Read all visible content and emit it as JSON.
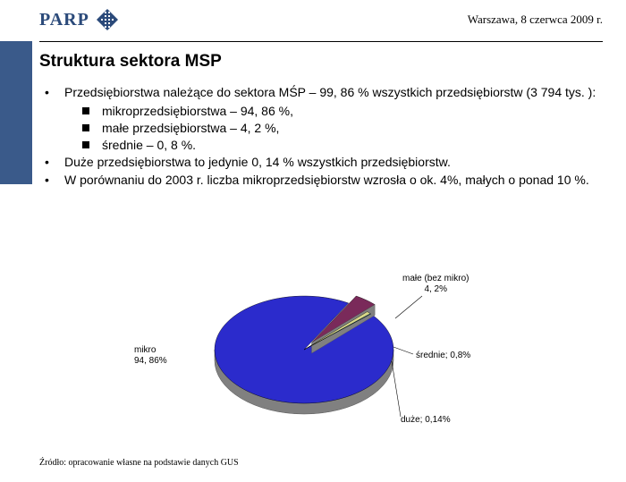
{
  "header": {
    "logo_text": "PARP",
    "date": "Warszawa, 8 czerwca 2009 r."
  },
  "title": "Struktura sektora MSP",
  "bullets": [
    {
      "text": "Przedsiębiorstwa należące do sektora MŚP – 99, 86 % wszystkich przedsiębiorstw (3 794 tys. ):",
      "subs": [
        "mikroprzedsiębiorstwa – 94, 86 %,",
        "małe przedsiębiorstwa – 4, 2 %,",
        "średnie – 0, 8 %."
      ]
    },
    {
      "text": "Duże przedsiębiorstwa to jedynie 0, 14 % wszystkich przedsiębiorstw.",
      "subs": []
    },
    {
      "text": "W porównaniu do 2003 r. liczba mikroprzedsiębiorstw wzrosła o ok. 4%, małych o ponad 10 %.",
      "subs": []
    }
  ],
  "chart": {
    "type": "pie",
    "background_color": "#ffffff",
    "slices": [
      {
        "label_line1": "mikro",
        "label_line2": "94, 86%",
        "value": 94.86,
        "color": "#2b2bcc"
      },
      {
        "label_line1": "małe (bez mikro)",
        "label_line2": "4, 2%",
        "value": 4.2,
        "color": "#7a2a5a"
      },
      {
        "label_line1": "średnie; 0,8%",
        "label_line2": "",
        "value": 0.8,
        "color": "#d8d888"
      },
      {
        "label_line1": "duże; 0,14%",
        "label_line2": "",
        "value": 0.14,
        "color": "#3aa0c8"
      }
    ],
    "label_fontsize": 10,
    "depth_color": "#808080",
    "pull_slice_index": 1
  },
  "source": "Źródło: opracowanie własne na podstawie danych GUS",
  "colors": {
    "sidebar": "#3a5a8a",
    "logo": "#2b4a7a"
  }
}
